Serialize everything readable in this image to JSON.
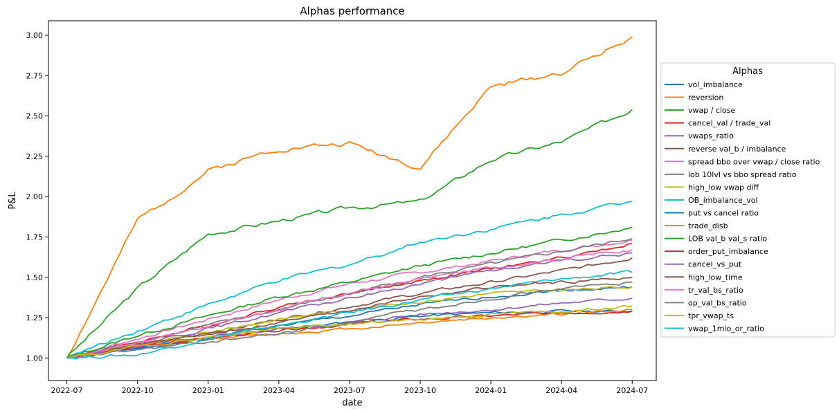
{
  "chart_data": {
    "type": "line",
    "title": "Alphas performance",
    "xlabel": "date",
    "ylabel": "P&L",
    "x_ticks": [
      "2022-07",
      "2022-10",
      "2023-01",
      "2023-04",
      "2023-07",
      "2023-10",
      "2024-01",
      "2024-04",
      "2024-07"
    ],
    "y_ticks": [
      "1.00",
      "1.25",
      "1.50",
      "1.75",
      "2.00",
      "2.25",
      "2.50",
      "2.75",
      "3.00"
    ],
    "ylim": [
      0.86,
      3.09
    ],
    "xlim_index": [
      -0.26,
      8.34
    ],
    "grid": false,
    "legend_title": "Alphas",
    "legend_position": "center-right-outside",
    "series": [
      {
        "name": "vol_imbalance",
        "color": "#1f77b4",
        "values": [
          1.0,
          1.07,
          1.13,
          1.2,
          1.26,
          1.33,
          1.38,
          1.42,
          1.44
        ]
      },
      {
        "name": "reversion",
        "color": "#ff7f0e",
        "values": [
          1.0,
          1.85,
          2.16,
          2.3,
          2.33,
          2.18,
          2.68,
          2.77,
          2.99
        ]
      },
      {
        "name": "vwap / close",
        "color": "#2ca02c",
        "values": [
          1.0,
          1.43,
          1.77,
          1.85,
          1.93,
          1.97,
          2.23,
          2.34,
          2.54
        ]
      },
      {
        "name": "cancel_val / trade_val",
        "color": "#d62728",
        "values": [
          1.0,
          1.1,
          1.2,
          1.32,
          1.4,
          1.48,
          1.55,
          1.62,
          1.71
        ]
      },
      {
        "name": "vwaps_ratio",
        "color": "#9467bd",
        "values": [
          1.0,
          1.06,
          1.12,
          1.18,
          1.22,
          1.27,
          1.3,
          1.34,
          1.37
        ]
      },
      {
        "name": "reverse val_b / imbalance",
        "color": "#8c564b",
        "values": [
          1.0,
          1.08,
          1.15,
          1.24,
          1.32,
          1.4,
          1.47,
          1.54,
          1.62
        ]
      },
      {
        "name": "spread bbo over vwap / close ratio",
        "color": "#e377c2",
        "values": [
          1.0,
          1.12,
          1.24,
          1.36,
          1.46,
          1.53,
          1.6,
          1.67,
          1.73
        ]
      },
      {
        "name": "lob 10lvl vs bbo spread ratio",
        "color": "#7f7f7f",
        "values": [
          1.0,
          1.1,
          1.2,
          1.3,
          1.4,
          1.5,
          1.58,
          1.66,
          1.74
        ]
      },
      {
        "name": "high_low vwap diff",
        "color": "#bcbd22",
        "values": [
          1.0,
          1.08,
          1.16,
          1.24,
          1.3,
          1.35,
          1.4,
          1.42,
          1.44
        ]
      },
      {
        "name": "OB_imbalance_vol",
        "color": "#17becf",
        "values": [
          1.0,
          1.17,
          1.33,
          1.48,
          1.58,
          1.72,
          1.8,
          1.89,
          1.97
        ]
      },
      {
        "name": "put vs cancel ratio",
        "color": "#1f77b4",
        "values": [
          1.0,
          1.06,
          1.12,
          1.18,
          1.22,
          1.26,
          1.28,
          1.29,
          1.29
        ]
      },
      {
        "name": "trade_disb",
        "color": "#ff7f0e",
        "values": [
          1.0,
          1.08,
          1.12,
          1.15,
          1.18,
          1.22,
          1.25,
          1.27,
          1.3
        ]
      },
      {
        "name": "LOB val_b val_s ratio",
        "color": "#2ca02c",
        "values": [
          1.0,
          1.14,
          1.26,
          1.38,
          1.47,
          1.57,
          1.65,
          1.73,
          1.81
        ]
      },
      {
        "name": "order_put_imbalance",
        "color": "#d62728",
        "values": [
          1.0,
          1.07,
          1.12,
          1.17,
          1.21,
          1.24,
          1.26,
          1.28,
          1.29
        ]
      },
      {
        "name": "cancel_vs_put",
        "color": "#9467bd",
        "values": [
          1.0,
          1.09,
          1.18,
          1.28,
          1.37,
          1.46,
          1.54,
          1.6,
          1.65
        ]
      },
      {
        "name": "high_low_time",
        "color": "#8c564b",
        "values": [
          1.0,
          1.08,
          1.15,
          1.22,
          1.3,
          1.38,
          1.44,
          1.47,
          1.5
        ]
      },
      {
        "name": "tr_val_bs_ratio",
        "color": "#e377c2",
        "values": [
          1.0,
          1.1,
          1.2,
          1.3,
          1.4,
          1.49,
          1.56,
          1.62,
          1.67
        ]
      },
      {
        "name": "op_val_bs_ratio",
        "color": "#7f7f7f",
        "values": [
          1.0,
          1.05,
          1.1,
          1.15,
          1.22,
          1.3,
          1.37,
          1.43,
          1.47
        ]
      },
      {
        "name": "tpr_vwap_ts",
        "color": "#bcbd22",
        "values": [
          1.0,
          1.07,
          1.13,
          1.18,
          1.21,
          1.24,
          1.27,
          1.29,
          1.32
        ]
      },
      {
        "name": "vwap_1mio_or_ratio",
        "color": "#17becf",
        "values": [
          1.0,
          1.02,
          1.12,
          1.2,
          1.28,
          1.36,
          1.43,
          1.49,
          1.53
        ]
      }
    ]
  }
}
